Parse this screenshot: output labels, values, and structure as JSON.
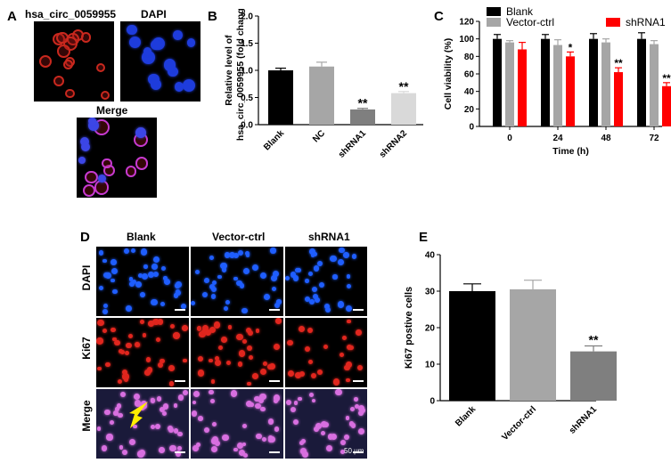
{
  "panels": {
    "A": "A",
    "B": "B",
    "C": "C",
    "D": "D",
    "E": "E"
  },
  "panel_a": {
    "title_left": "hsa_circ_0059955",
    "title_right": "DAPI",
    "title_bottom": "Merge"
  },
  "panel_d": {
    "cols": [
      "Blank",
      "Vector-ctrl",
      "shRNA1"
    ],
    "rows": [
      "DAPI",
      "Ki67",
      "Merge"
    ],
    "scale_text": "50 μm"
  },
  "colors": {
    "black": "#000000",
    "gray": "#a6a6a6",
    "red": "#ff0000",
    "darkgray": "#7f7f7f",
    "lightgray": "#d9d9d9",
    "dapi": "#1f5eff",
    "ki67": "#e0261e",
    "merge": "#d86fe0",
    "arrow": "#ffee00"
  },
  "chart_data": [
    {
      "id": "B",
      "type": "bar",
      "categories": [
        "Blank",
        "NC",
        "shRNA1",
        "shRNA2"
      ],
      "values": [
        1.0,
        1.07,
        0.28,
        0.58
      ],
      "errors": [
        0.04,
        0.08,
        0.02,
        0.03
      ],
      "colors": [
        "#000000",
        "#a6a6a6",
        "#7f7f7f",
        "#d9d9d9"
      ],
      "significance": [
        "",
        "",
        "**",
        "**"
      ],
      "ylabel_line1": "Relative level of",
      "ylabel_line2": "hsa_circ_0059955 (fold change)",
      "ylim": [
        0,
        2.0
      ],
      "yticks": [
        "0.0",
        "0.5",
        "1.0",
        "1.5",
        "2.0"
      ],
      "ytick_values": [
        0,
        0.5,
        1.0,
        1.5,
        2.0
      ]
    },
    {
      "id": "C",
      "type": "bar",
      "categories": [
        "0",
        "24",
        "48",
        "72"
      ],
      "series": [
        {
          "name": "Blank",
          "values": [
            100,
            100,
            100,
            100
          ],
          "errors": [
            5,
            5,
            6,
            7
          ]
        },
        {
          "name": "Vector-ctrl",
          "values": [
            96,
            93,
            96,
            94
          ],
          "errors": [
            2,
            6,
            4,
            4
          ]
        },
        {
          "name": "shRNA1",
          "values": [
            88,
            80,
            62,
            46
          ],
          "errors": [
            8,
            5,
            5,
            4
          ]
        }
      ],
      "colors": [
        "#000000",
        "#a6a6a6",
        "#ff0000"
      ],
      "significance": [
        "",
        "*",
        "**",
        "**"
      ],
      "xlabel": "Time (h)",
      "ylabel": "Cell viability (%)",
      "ylim": [
        0,
        120
      ],
      "yticks": [
        "0",
        "20",
        "40",
        "60",
        "80",
        "100",
        "120"
      ],
      "ytick_values": [
        0,
        20,
        40,
        60,
        80,
        100,
        120
      ]
    },
    {
      "id": "E",
      "type": "bar",
      "categories": [
        "Blank",
        "Vector-ctrl",
        "shRNA1"
      ],
      "values": [
        30,
        30.5,
        13.5
      ],
      "errors": [
        2,
        2.5,
        1.5
      ],
      "colors": [
        "#000000",
        "#a6a6a6",
        "#7f7f7f"
      ],
      "significance": [
        "",
        "",
        "**"
      ],
      "ylabel": "Ki67 postive cells",
      "ylim": [
        0,
        40
      ],
      "yticks": [
        "0",
        "10",
        "20",
        "30",
        "40"
      ],
      "ytick_values": [
        0,
        10,
        20,
        30,
        40
      ]
    }
  ]
}
